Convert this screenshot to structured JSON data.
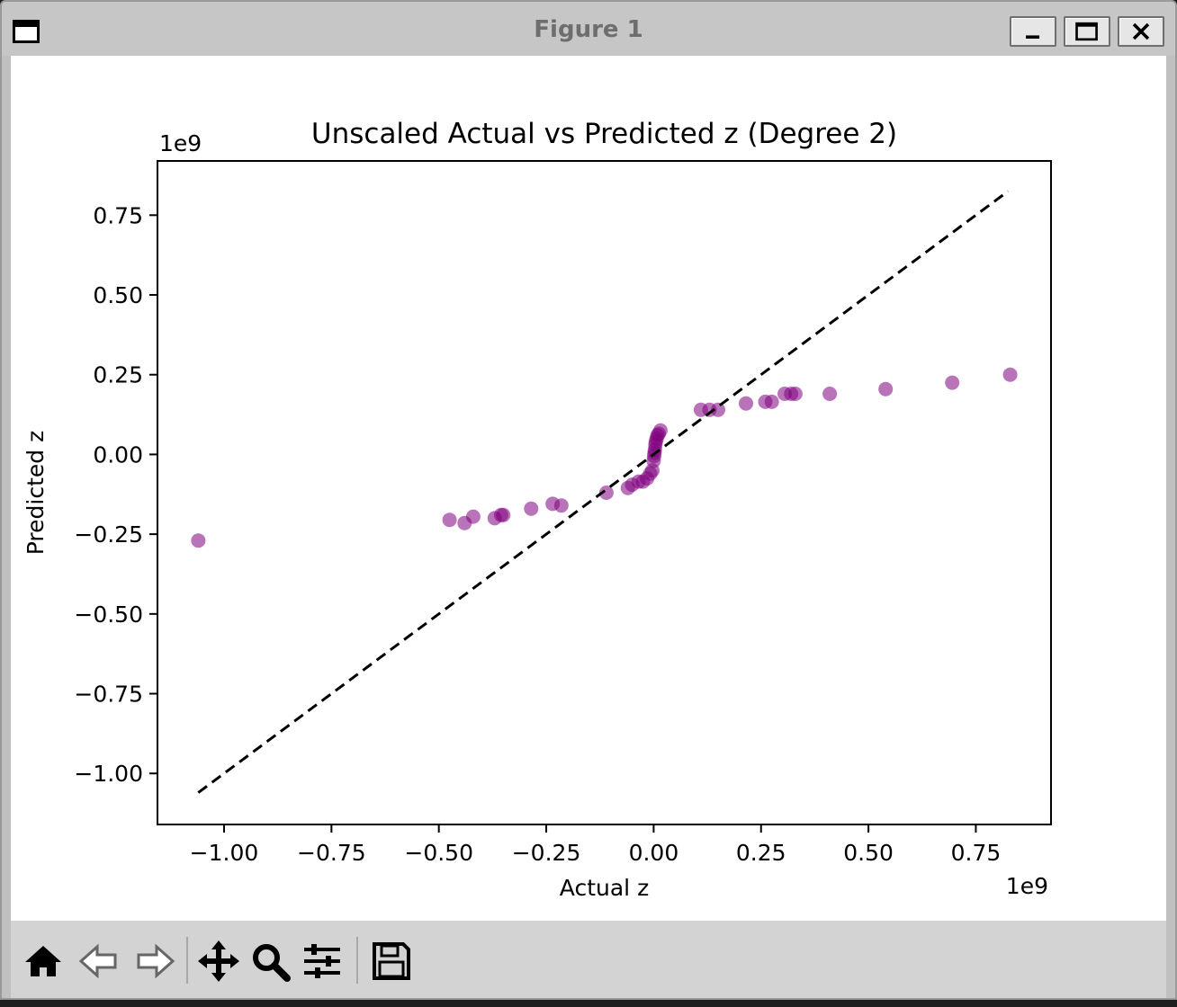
{
  "window": {
    "title": "Figure 1"
  },
  "titlebar_buttons": [
    {
      "name": "minimize-button",
      "icon": "minimize-icon"
    },
    {
      "name": "maximize-button",
      "icon": "maximize-icon"
    },
    {
      "name": "close-button",
      "icon": "close-icon"
    }
  ],
  "toolbar": {
    "buttons": [
      {
        "name": "home-button",
        "icon": "home-icon"
      },
      {
        "name": "back-button",
        "icon": "back-arrow-icon"
      },
      {
        "name": "forward-button",
        "icon": "forward-arrow-icon"
      },
      {
        "name": "pan-button",
        "icon": "move-icon"
      },
      {
        "name": "zoom-button",
        "icon": "magnifier-icon"
      },
      {
        "name": "configure-subplots-button",
        "icon": "sliders-icon"
      },
      {
        "name": "save-button",
        "icon": "floppy-disk-icon"
      }
    ]
  },
  "chart_data": {
    "type": "scatter",
    "title": "Unscaled Actual vs Predicted z (Degree 2)",
    "xlabel": "Actual z",
    "ylabel": "Predicted z",
    "x_offset_label": "1e9",
    "y_offset_label": "1e9",
    "xlim": [
      -1.155,
      0.925
    ],
    "ylim": [
      -1.16,
      0.92
    ],
    "xticks": [
      -1.0,
      -0.75,
      -0.5,
      -0.25,
      0.0,
      0.25,
      0.5,
      0.75
    ],
    "xtick_labels": [
      "−1.00",
      "−0.75",
      "−0.50",
      "−0.25",
      "0.00",
      "0.25",
      "0.50",
      "0.75"
    ],
    "yticks": [
      0.75,
      0.5,
      0.25,
      0.0,
      -0.25,
      -0.5,
      -0.75,
      -1.0
    ],
    "ytick_labels": [
      "0.75",
      "0.50",
      "0.25",
      "0.00",
      "−0.25",
      "−0.50",
      "−0.75",
      "−1.00"
    ],
    "grid": false,
    "point_color": "#800080",
    "point_alpha": 0.55,
    "reference_line": {
      "style": "dashed",
      "color": "#000000",
      "from": [
        -1.06,
        -1.06
      ],
      "to": [
        0.825,
        0.825
      ]
    },
    "points": [
      [
        -1.06,
        -0.27
      ],
      [
        -0.475,
        -0.205
      ],
      [
        -0.44,
        -0.215
      ],
      [
        -0.42,
        -0.195
      ],
      [
        -0.37,
        -0.2
      ],
      [
        -0.355,
        -0.19
      ],
      [
        -0.35,
        -0.19
      ],
      [
        -0.285,
        -0.17
      ],
      [
        -0.235,
        -0.155
      ],
      [
        -0.215,
        -0.16
      ],
      [
        -0.11,
        -0.12
      ],
      [
        -0.06,
        -0.105
      ],
      [
        -0.05,
        -0.095
      ],
      [
        -0.035,
        -0.085
      ],
      [
        -0.025,
        -0.085
      ],
      [
        -0.015,
        -0.075
      ],
      [
        -0.008,
        -0.06
      ],
      [
        -0.003,
        -0.05
      ],
      [
        0.0,
        -0.02
      ],
      [
        0.001,
        -0.005
      ],
      [
        0.002,
        0.005
      ],
      [
        0.003,
        0.015
      ],
      [
        0.004,
        0.03
      ],
      [
        0.005,
        0.04
      ],
      [
        0.007,
        0.05
      ],
      [
        0.009,
        0.06
      ],
      [
        0.012,
        0.065
      ],
      [
        0.016,
        0.075
      ],
      [
        0.11,
        0.14
      ],
      [
        0.13,
        0.14
      ],
      [
        0.15,
        0.14
      ],
      [
        0.215,
        0.16
      ],
      [
        0.26,
        0.165
      ],
      [
        0.275,
        0.165
      ],
      [
        0.305,
        0.19
      ],
      [
        0.32,
        0.19
      ],
      [
        0.33,
        0.19
      ],
      [
        0.41,
        0.19
      ],
      [
        0.54,
        0.205
      ],
      [
        0.695,
        0.225
      ],
      [
        0.83,
        0.25
      ]
    ]
  }
}
